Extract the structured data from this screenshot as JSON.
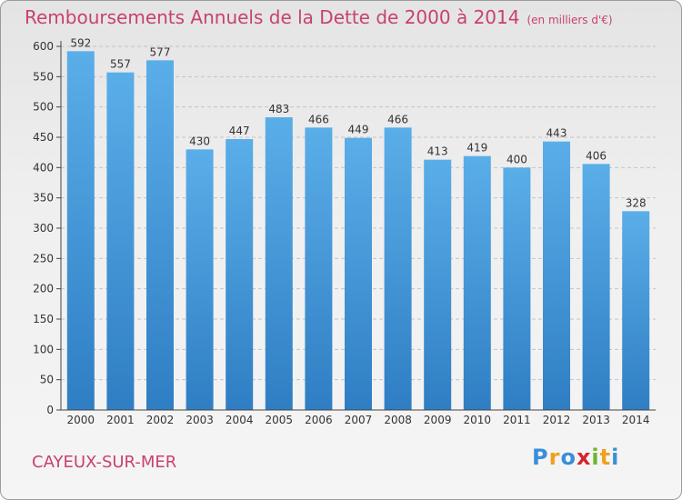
{
  "chart_data": {
    "type": "bar",
    "title": "Remboursements Annuels de la Dette de 2000 à 2014",
    "subtitle": "(en milliers d'€)",
    "categories": [
      "2000",
      "2001",
      "2002",
      "2003",
      "2004",
      "2005",
      "2006",
      "2007",
      "2008",
      "2009",
      "2010",
      "2011",
      "2012",
      "2013",
      "2014"
    ],
    "values": [
      592,
      557,
      577,
      430,
      447,
      483,
      466,
      449,
      466,
      413,
      419,
      400,
      443,
      406,
      328
    ],
    "yticks": [
      0,
      50,
      100,
      150,
      200,
      250,
      300,
      350,
      400,
      450,
      500,
      550,
      600
    ],
    "ylim": [
      0,
      600
    ],
    "xlabel": "",
    "ylabel": "",
    "grid": true,
    "bar_color_top": "#5aaee8",
    "bar_color_bottom": "#2f7ec4"
  },
  "footer": {
    "town": "CAYEUX-SUR-MER",
    "logo_letters": [
      {
        "ch": "P",
        "color": "#3a8fd8"
      },
      {
        "ch": "r",
        "color": "#f0a01e"
      },
      {
        "ch": "o",
        "color": "#3a8fd8"
      },
      {
        "ch": "x",
        "color": "#d8242c"
      },
      {
        "ch": "i",
        "color": "#6ab82e"
      },
      {
        "ch": "t",
        "color": "#f0a01e"
      },
      {
        "ch": "i",
        "color": "#3a8fd8"
      }
    ]
  }
}
